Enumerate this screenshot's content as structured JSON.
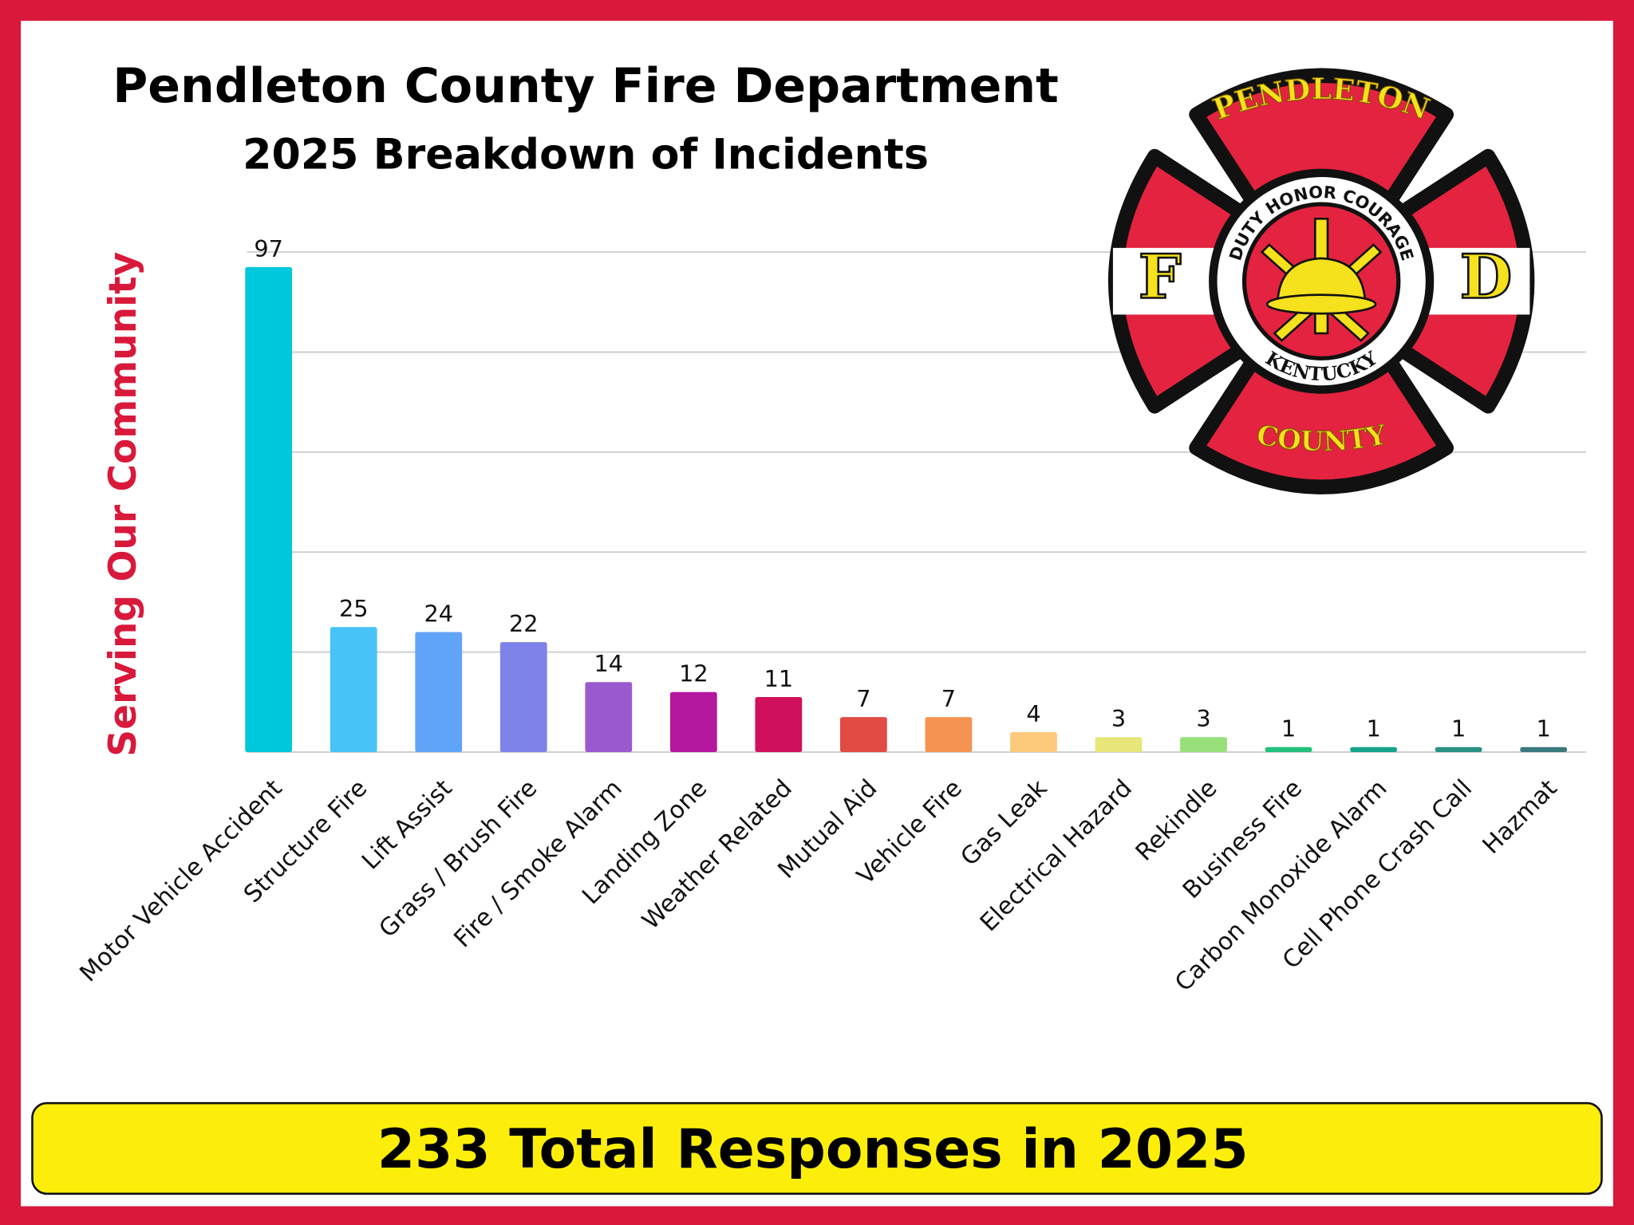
{
  "chart_data": {
    "type": "bar",
    "title": "Pendleton County Fire Department",
    "subtitle": "2025 Breakdown of Incidents",
    "side_label": "Serving Our Community",
    "footer": "233 Total Responses in 2025",
    "categories": [
      "Motor Vehicle Accident",
      "Structure Fire",
      "Lift Assist",
      "Grass / Brush Fire",
      "Fire / Smoke Alarm",
      "Landing Zone",
      "Weather Related",
      "Mutual Aid",
      "Vehicle Fire",
      "Gas Leak",
      "Electrical Hazard",
      "Rekindle",
      "Business Fire",
      "Carbon Monoxide Alarm",
      "Cell Phone Crash Call",
      "Hazmat"
    ],
    "values": [
      97,
      25,
      24,
      22,
      14,
      12,
      11,
      7,
      7,
      4,
      3,
      3,
      1,
      1,
      1,
      1
    ],
    "colors": [
      "#00c8dc",
      "#47c3f8",
      "#5fa4f6",
      "#7d83e8",
      "#9b59d0",
      "#b5179e",
      "#d0105a",
      "#e04b44",
      "#f59451",
      "#fdc97a",
      "#e6e67a",
      "#97e07a",
      "#22c07a",
      "#17a58a",
      "#2a9185",
      "#3d7a80"
    ],
    "ylim": [
      0,
      100
    ],
    "yticks": [
      0,
      20,
      40,
      60,
      80,
      100
    ],
    "grid": true
  },
  "logo": {
    "top": "PENDLETON",
    "bottom": "COUNTY",
    "left": "F",
    "right": "D",
    "motto": "DUTY HONOR COURAGE",
    "state": "KENTUCKY"
  }
}
